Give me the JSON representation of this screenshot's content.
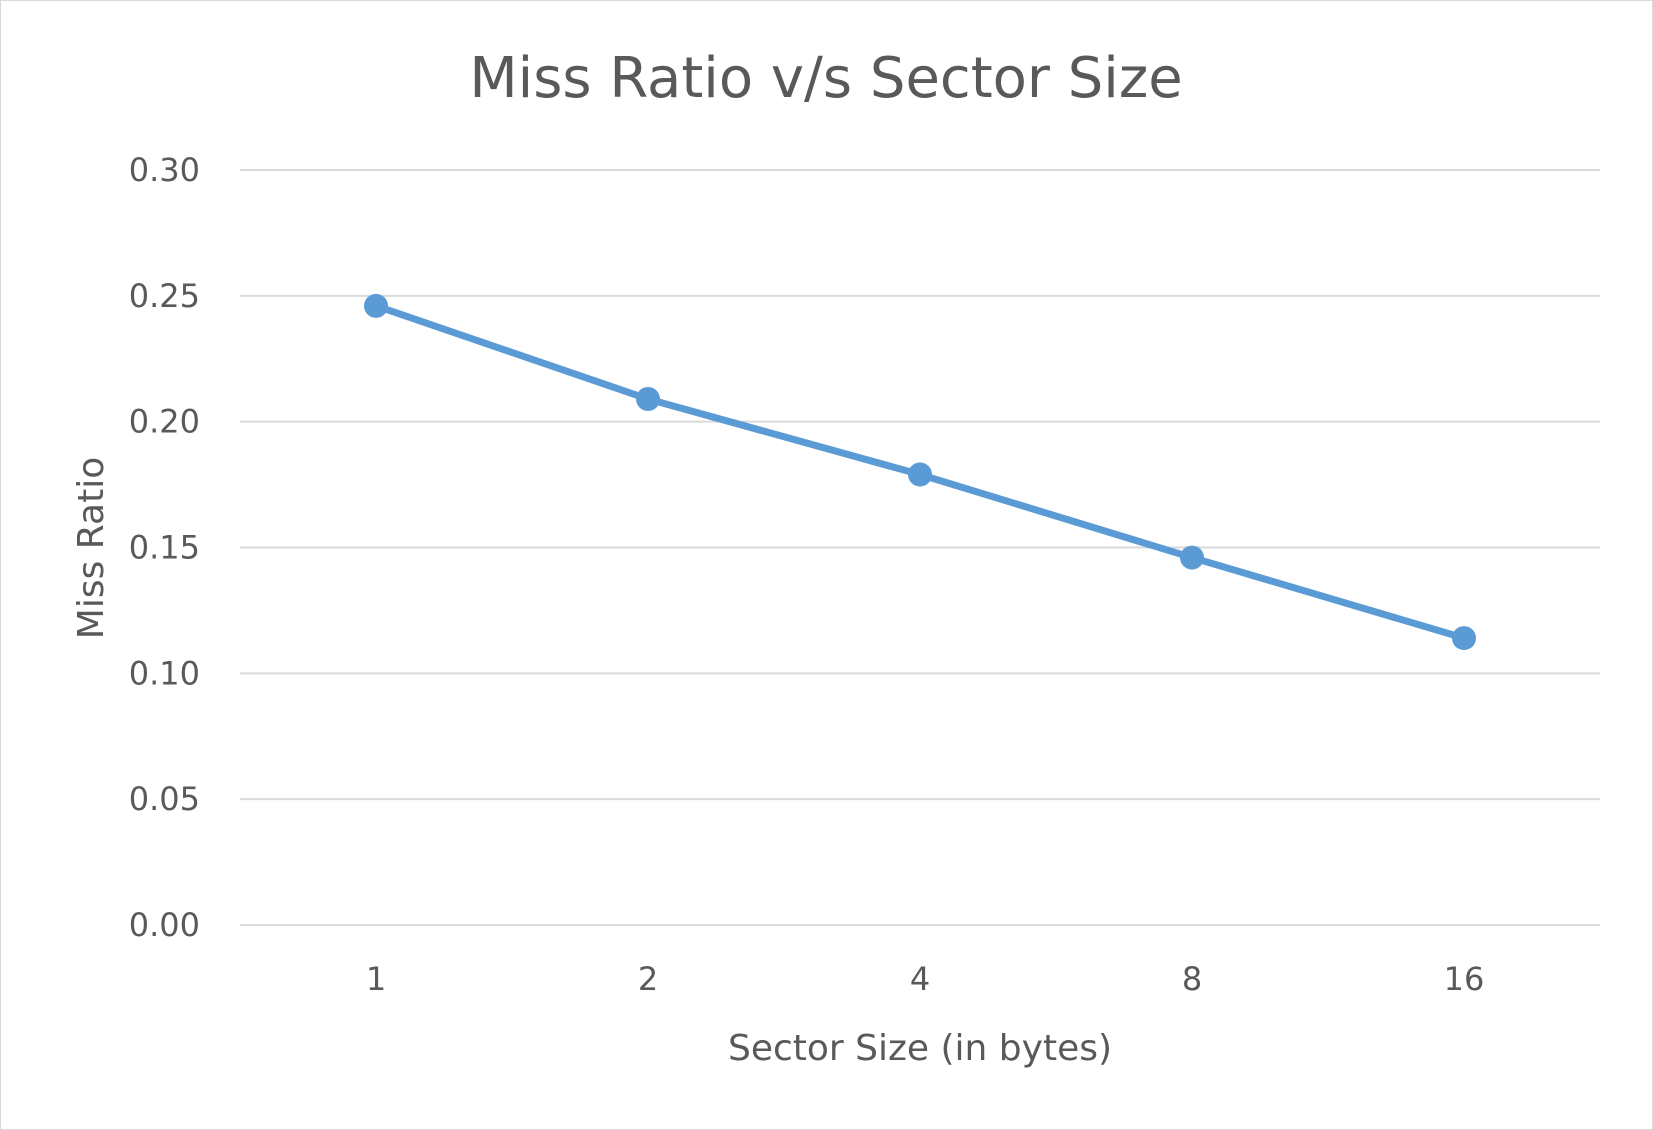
{
  "chart_data": {
    "type": "line",
    "title": "Miss Ratio v/s Sector Size",
    "xlabel": "Sector Size (in bytes)",
    "ylabel": "Miss Ratio",
    "categories": [
      "1",
      "2",
      "4",
      "8",
      "16"
    ],
    "series": [
      {
        "values": [
          0.246,
          0.209,
          0.179,
          0.146,
          0.114
        ]
      }
    ],
    "ylim": [
      0,
      0.3
    ],
    "yticks": [
      "0.00",
      "0.05",
      "0.10",
      "0.15",
      "0.20",
      "0.25",
      "0.30"
    ],
    "grid": true,
    "legend": "none",
    "colors": {
      "series": "#5b9bd5",
      "grid": "#d9d9d9",
      "text": "#595959"
    }
  }
}
